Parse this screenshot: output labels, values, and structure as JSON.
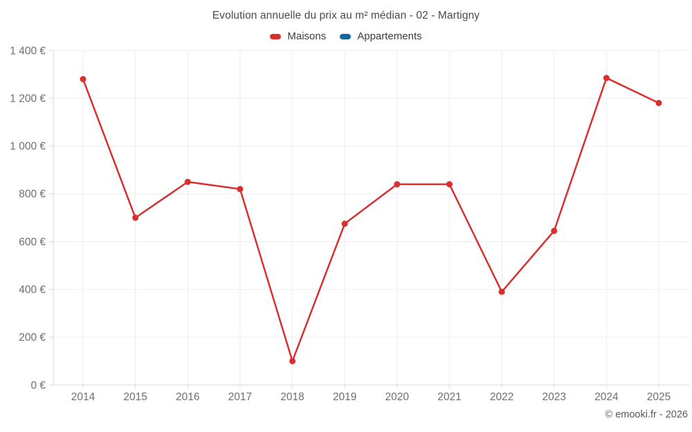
{
  "chart_data": {
    "type": "line",
    "title": "Evolution annuelle du prix au m² médian - 02 - Martigny",
    "categories": [
      "2014",
      "2015",
      "2016",
      "2017",
      "2018",
      "2019",
      "2020",
      "2021",
      "2022",
      "2023",
      "2024",
      "2025"
    ],
    "series": [
      {
        "name": "Maisons",
        "color": "#d92f2f",
        "values": [
          1280,
          700,
          850,
          820,
          100,
          675,
          840,
          840,
          390,
          645,
          1285,
          1180
        ]
      },
      {
        "name": "Appartements",
        "color": "#11689c",
        "values": []
      }
    ],
    "xlabel": "",
    "ylabel": "",
    "ylim": [
      0,
      1400
    ],
    "y_tick_step": 200,
    "y_tick_labels": [
      "0 €",
      "200 €",
      "400 €",
      "600 €",
      "800 €",
      "1 000 €",
      "1 200 €",
      "1 400 €"
    ],
    "grid": true,
    "legend_position": "top",
    "point_marker": "circle"
  },
  "footer": {
    "credit": "© emooki.fr - 2026"
  },
  "style_colors": {
    "grid_line": "#ededed",
    "axis_line": "#d9d9d9",
    "tick_mark": "#d9d9d9",
    "axis_text": "#6e6e6e",
    "title_text": "#4a4a4a",
    "legend_text": "#3c3c3c",
    "background": "#ffffff"
  }
}
